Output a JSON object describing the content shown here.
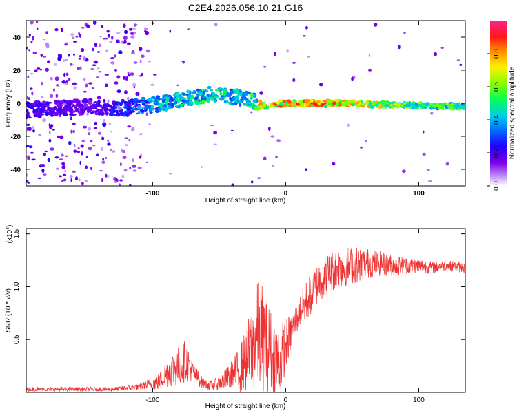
{
  "title": "C2E4.2026.056.10.21.G16",
  "chart_data": [
    {
      "type": "heatmap",
      "name": "spectrogram",
      "xlabel": "Height of straight line (km)",
      "ylabel": "Frequency (Hz)",
      "xlim": [
        -195,
        135
      ],
      "ylim": [
        -50,
        50
      ],
      "xticks": [
        -100,
        0,
        100
      ],
      "yticks": [
        40,
        20,
        0,
        -20,
        -40
      ],
      "xtick_labels": [
        "-100",
        "0",
        "100"
      ],
      "ytick_labels": [
        "40",
        "20",
        "0",
        "-20",
        "-40"
      ],
      "colorbar": {
        "label": "Normalized spectral amplitude",
        "range": [
          0,
          1
        ],
        "ticks": [
          "0.0",
          "0.2",
          "0.4",
          "0.6",
          "0.8"
        ],
        "tick_values": [
          0,
          0.2,
          0.4,
          0.6,
          0.8
        ]
      },
      "ridge": {
        "x": [
          -195,
          -150,
          -120,
          -100,
          -80,
          -60,
          -50,
          -40,
          -30,
          -22,
          -18,
          0,
          40,
          80,
          135
        ],
        "y": [
          -4,
          -2,
          -3,
          -1,
          2,
          5,
          6,
          4,
          3,
          1,
          -2,
          0,
          0,
          -1,
          -2
        ],
        "amplitude": [
          0.25,
          0.2,
          0.3,
          0.45,
          0.5,
          0.55,
          0.55,
          0.5,
          0.5,
          0.6,
          0.85,
          0.9,
          0.9,
          0.7,
          0.6
        ]
      }
    },
    {
      "type": "line",
      "name": "snr",
      "xlabel": "Height of straight line (km)",
      "ylabel": "SNR (10 * v/v)",
      "multiplier": "(x10",
      "multiplier_exp": "4",
      "multiplier_close": ")",
      "xlim": [
        -195,
        135
      ],
      "ylim": [
        0,
        1.55
      ],
      "xticks": [
        -100,
        0,
        100
      ],
      "yticks": [
        1.5,
        1.0,
        0.5
      ],
      "xtick_labels": [
        "-100",
        "0",
        "100"
      ],
      "ytick_labels": [
        "1.5",
        "1.0",
        "0.5"
      ],
      "color": "#ee3333",
      "envelope": {
        "x": [
          -195,
          -130,
          -110,
          -95,
          -88,
          -80,
          -75,
          -70,
          -62,
          -55,
          -48,
          -42,
          -36,
          -30,
          -24,
          -20,
          -15,
          -10,
          -5,
          0,
          5,
          10,
          15,
          20,
          25,
          30,
          35,
          40,
          50,
          60,
          70,
          80,
          90,
          100,
          110,
          120,
          135
        ],
        "y": [
          0.03,
          0.03,
          0.05,
          0.1,
          0.2,
          0.25,
          0.3,
          0.2,
          0.08,
          0.06,
          0.1,
          0.15,
          0.2,
          0.3,
          0.45,
          0.55,
          0.45,
          0.35,
          0.3,
          0.45,
          0.6,
          0.75,
          0.85,
          0.95,
          1.05,
          1.1,
          1.15,
          1.18,
          1.2,
          1.22,
          1.22,
          1.2,
          1.2,
          1.2,
          1.18,
          1.2,
          1.18
        ],
        "spread": [
          0.02,
          0.02,
          0.03,
          0.08,
          0.15,
          0.2,
          0.2,
          0.1,
          0.05,
          0.05,
          0.08,
          0.12,
          0.2,
          0.3,
          0.45,
          0.55,
          0.5,
          0.4,
          0.35,
          0.25,
          0.15,
          0.15,
          0.2,
          0.2,
          0.2,
          0.2,
          0.2,
          0.2,
          0.18,
          0.15,
          0.12,
          0.1,
          0.08,
          0.07,
          0.06,
          0.05,
          0.05
        ]
      }
    }
  ]
}
